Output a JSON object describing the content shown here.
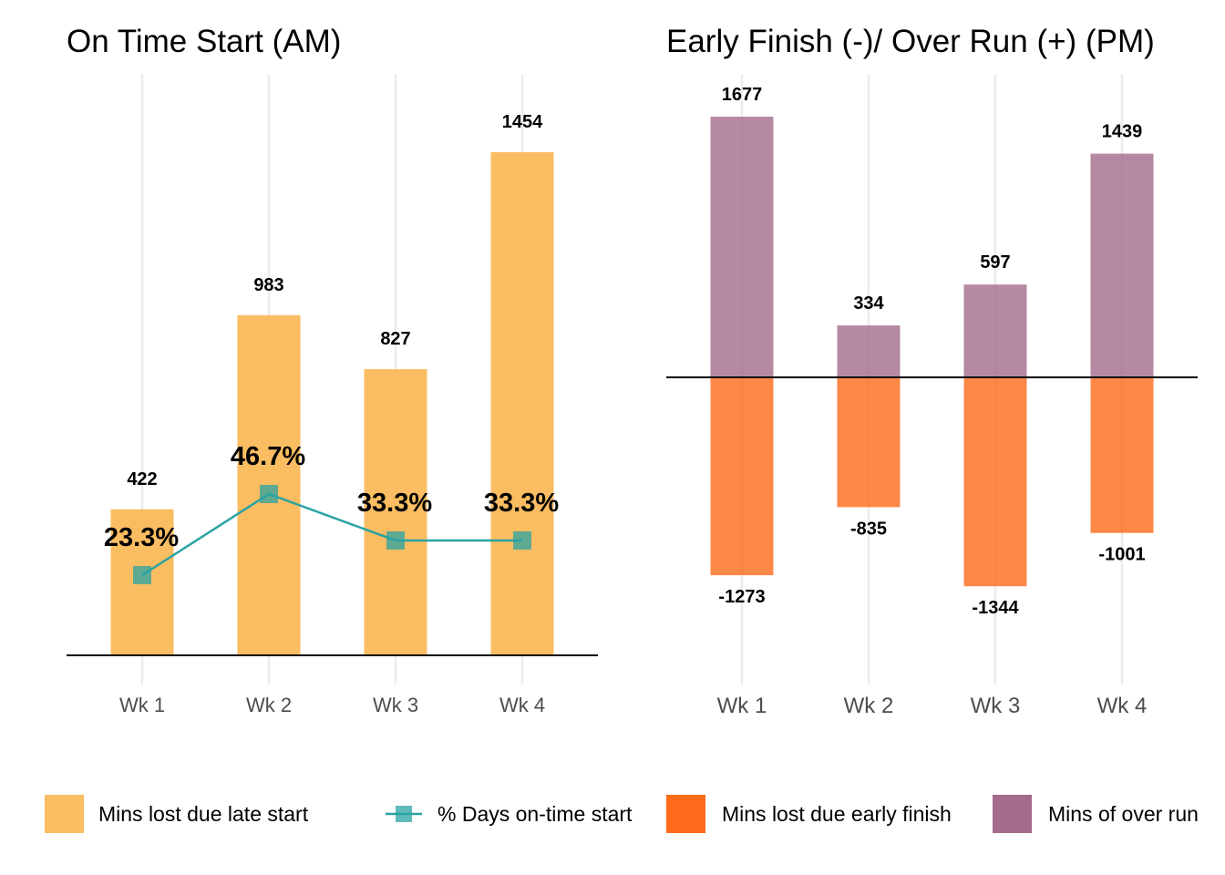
{
  "chart_data": [
    {
      "type": "bar",
      "title": "On Time Start (AM)",
      "categories": [
        "Wk 1",
        "Wk 2",
        "Wk 3",
        "Wk 4"
      ],
      "series": [
        {
          "name": "Mins lost due late start",
          "type": "bar",
          "values": [
            422,
            983,
            827,
            1454
          ],
          "labels": [
            "422",
            "983",
            "827",
            "1454"
          ],
          "color": "#fbbd62"
        },
        {
          "name": "% Days on-time start",
          "type": "line",
          "values": [
            23.3,
            46.7,
            33.3,
            33.3
          ],
          "labels": [
            "23.3%",
            "46.7%",
            "33.3%",
            "33.3%"
          ],
          "color": "#2aa3a3"
        }
      ],
      "ylim": [
        0,
        1500
      ],
      "grid": "vertical"
    },
    {
      "type": "bar",
      "title": "Early Finish (-)/ Over Run (+) (PM)",
      "categories": [
        "Wk 1",
        "Wk 2",
        "Wk 3",
        "Wk 4"
      ],
      "series": [
        {
          "name": "Mins of over run",
          "values": [
            1677,
            334,
            597,
            1439
          ],
          "labels": [
            "1677",
            "334",
            "597",
            "1439"
          ],
          "color": "#a46b8c"
        },
        {
          "name": "Mins lost due early finish",
          "values": [
            -1273,
            -835,
            -1344,
            -1001
          ],
          "labels": [
            "-1273",
            "-835",
            "-1344",
            "-1001"
          ],
          "color": "#fe6a1a"
        }
      ],
      "ylim": [
        -1400,
        1800
      ],
      "grid": "vertical"
    }
  ],
  "legend": {
    "placement": "bottom",
    "items": [
      {
        "label": "Mins lost due late start",
        "kind": "bar",
        "color": "#fbbd62"
      },
      {
        "label": "% Days on-time start",
        "kind": "line",
        "color": "#2aa3a3"
      },
      {
        "label": "Mins lost due early finish",
        "kind": "bar",
        "color": "#fe6a1a"
      },
      {
        "label": "Mins of over run",
        "kind": "bar",
        "color": "#a46b8c"
      }
    ]
  }
}
